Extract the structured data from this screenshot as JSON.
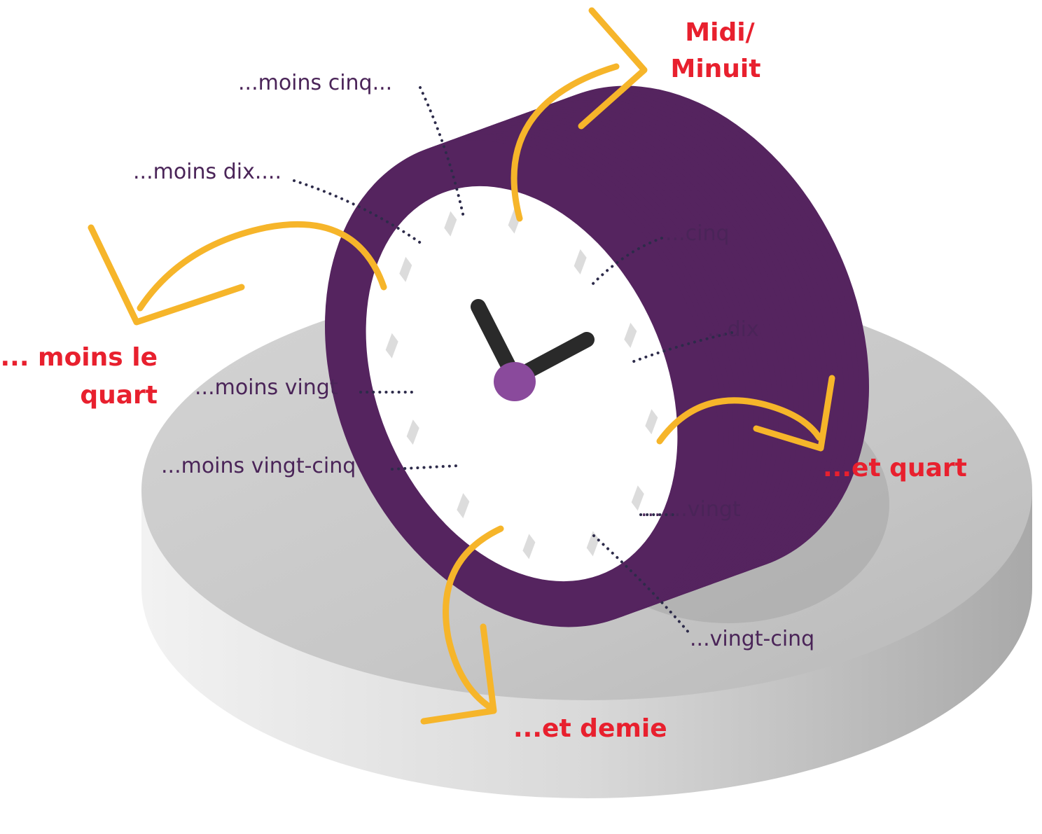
{
  "labels": {
    "noon": [
      "Midi/",
      "Minuit"
    ],
    "quarter_to": [
      "... moins le",
      "quart"
    ],
    "quarter_past": "...et quart",
    "half_past": "...et demie"
  },
  "minutes": {
    "moins_cinq": "...moins cinq...",
    "moins_dix": "...moins dix....",
    "moins_vingt": "...moins vingt",
    "moins_vingt_cinq": "...moins vingt-cinq",
    "cinq": "...cinq",
    "dix": "...dix",
    "vingt": "... ...vingt",
    "vingt_cinq": "...vingt-cinq"
  }
}
